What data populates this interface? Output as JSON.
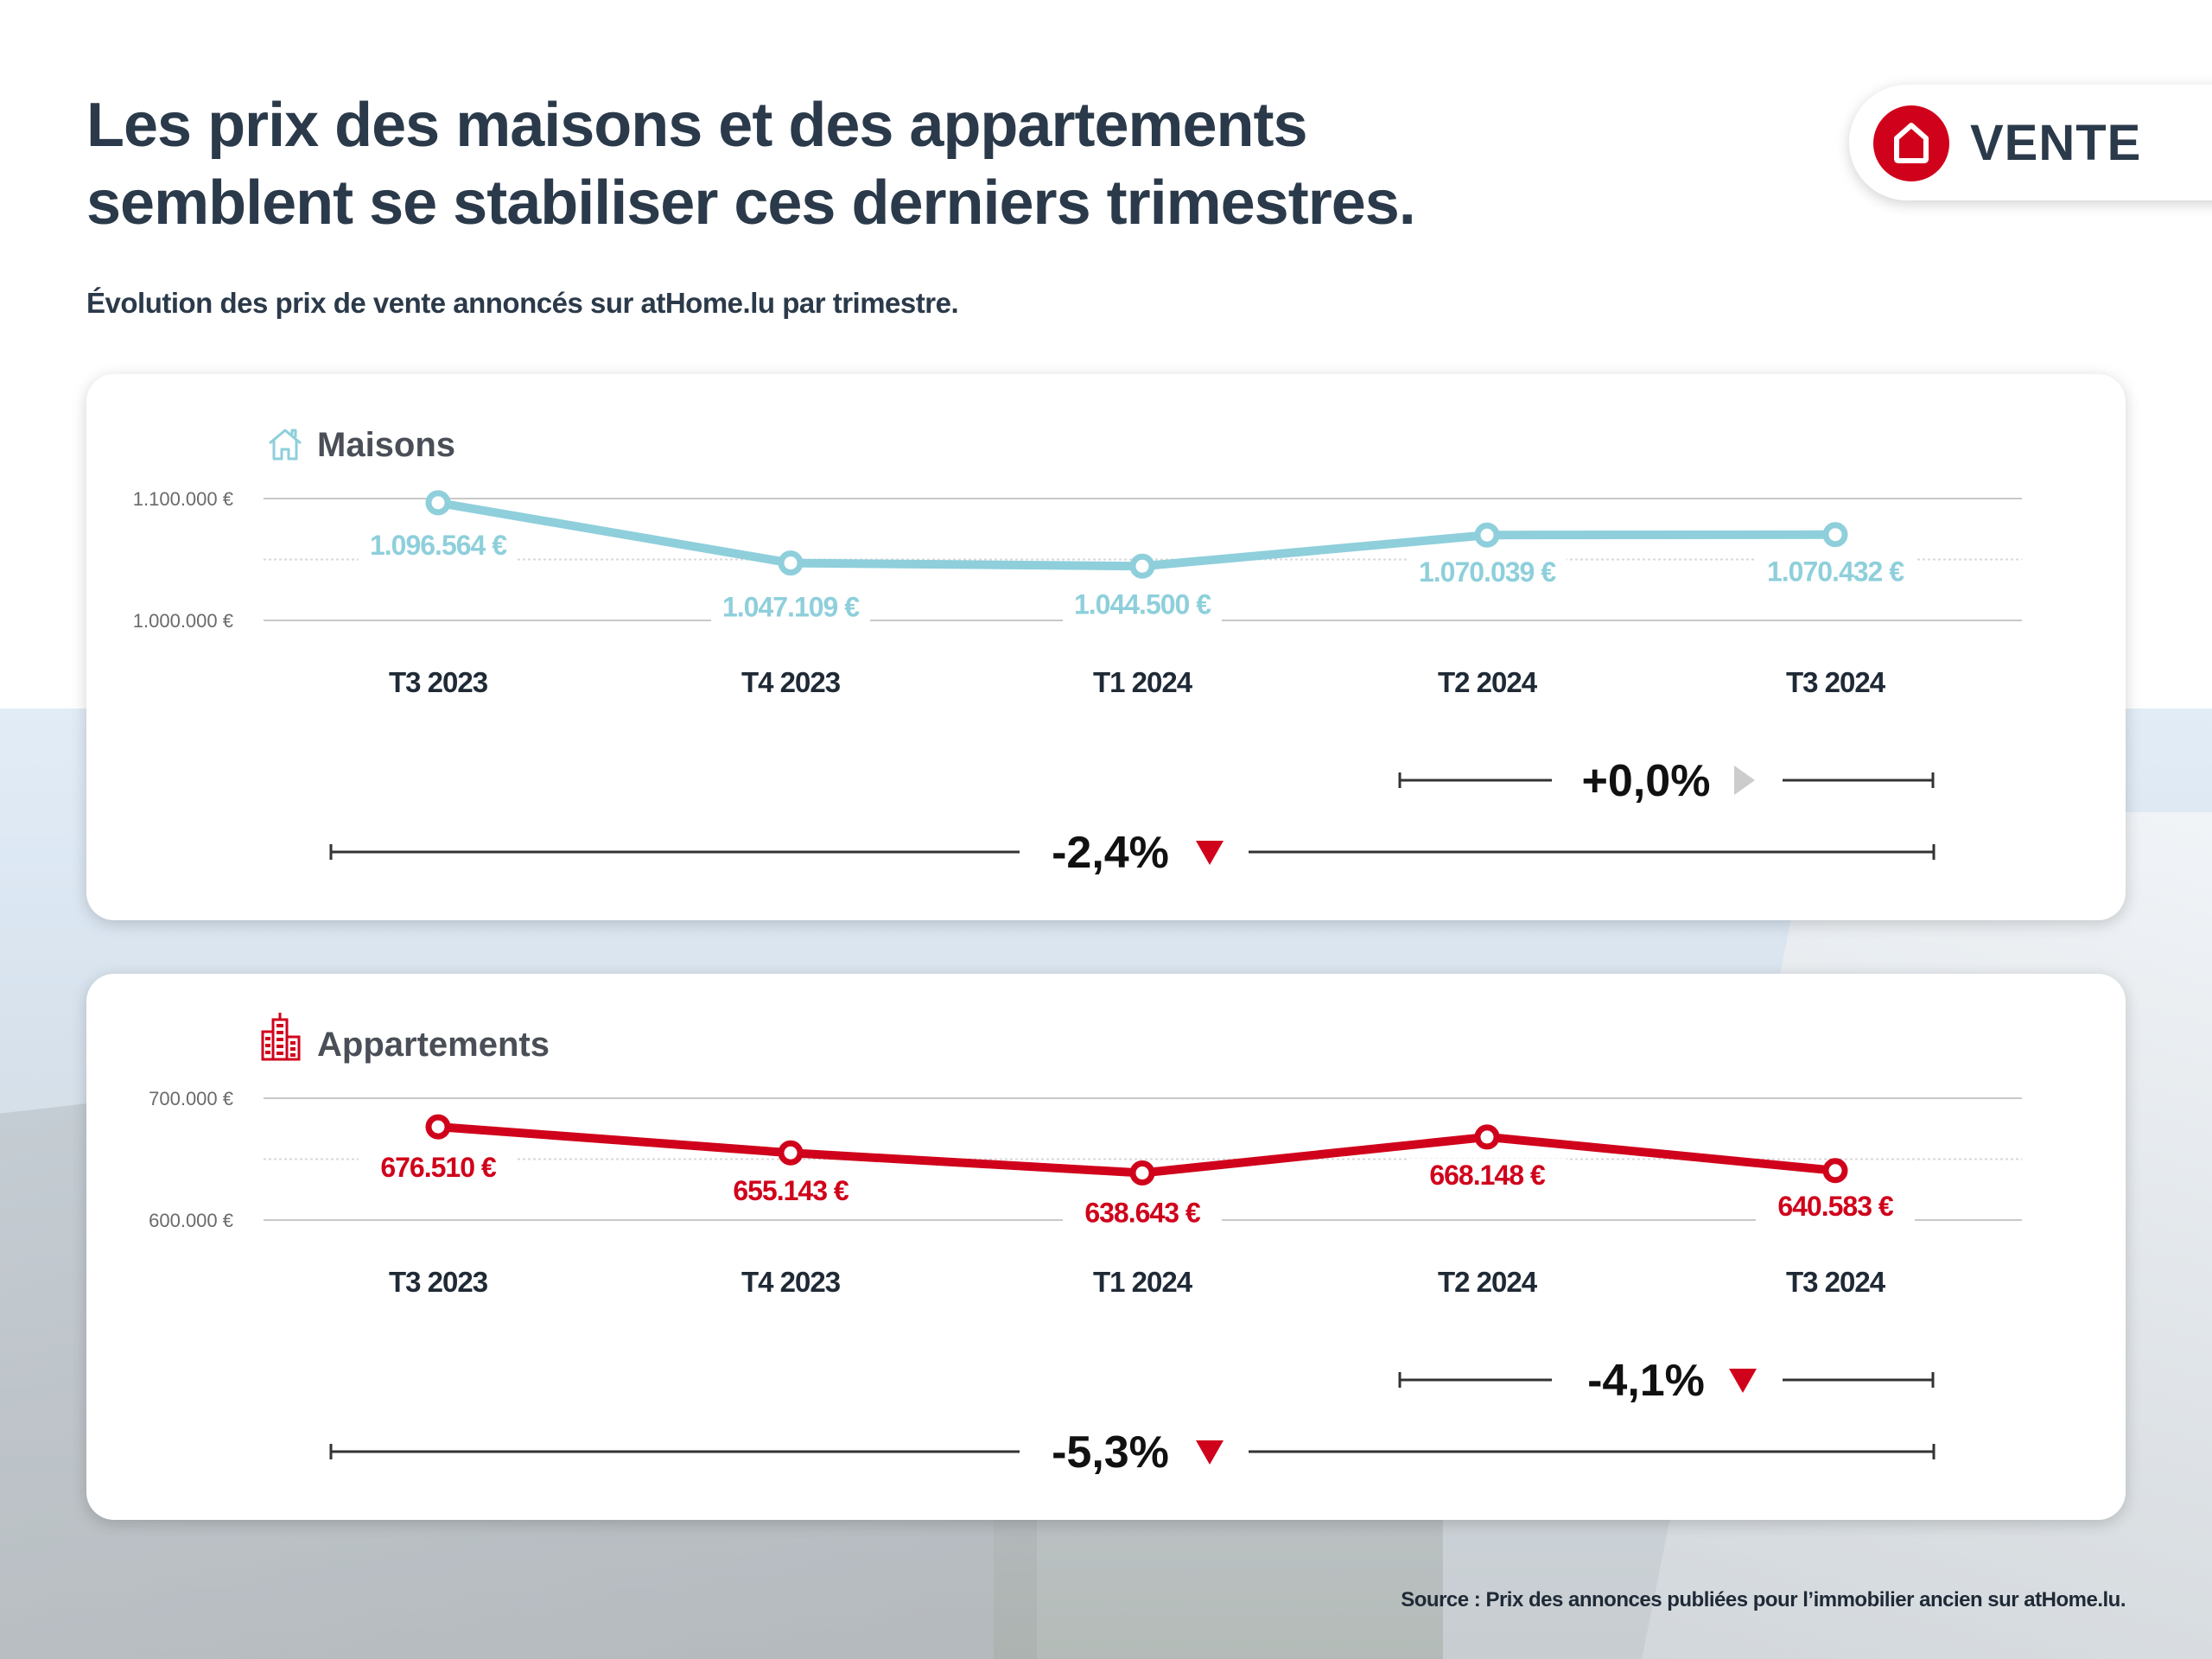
{
  "header": {
    "title_line1": "Les prix des maisons et des appartements",
    "title_line2": "semblent se stabiliser ces derniers trimestres.",
    "subtitle": "Évolution des prix de vente annoncés sur atHome.lu par trimestre.",
    "badge_label": "VENTE",
    "badge_icon": "house-icon"
  },
  "colors": {
    "maisons": "#8ecfdb",
    "appartements": "#d0021b",
    "text_dark": "#2b3a4a",
    "neutral_arrow": "#cccccc",
    "down_arrow": "#d0021b"
  },
  "chart_data": [
    {
      "type": "line",
      "title": "Maisons",
      "icon": "house-outline-icon",
      "categories": [
        "T3 2023",
        "T4 2023",
        "T1 2024",
        "T2 2024",
        "T3 2024"
      ],
      "values": [
        1096564,
        1047109,
        1044500,
        1070039,
        1070432
      ],
      "value_labels": [
        "1.096.564 €",
        "1.047.109 €",
        "1.044.500 €",
        "1.070.039 €",
        "1.070.432 €"
      ],
      "label_position": [
        "below",
        "below",
        "below",
        "below",
        "below"
      ],
      "yticks": [
        1000000,
        1100000
      ],
      "ytick_labels": [
        "1.000.000 €",
        "1.100.000 €"
      ],
      "ylim": [
        1000000,
        1100000
      ],
      "grid": true,
      "xlabel": "",
      "ylabel": "",
      "changes": [
        {
          "label": "+0,0%",
          "from": "T2 2024",
          "to": "T3 2024",
          "direction": "neutral"
        },
        {
          "label": "-2,4%",
          "from": "T3 2023",
          "to": "T3 2024",
          "direction": "down"
        }
      ]
    },
    {
      "type": "line",
      "title": "Appartements",
      "icon": "apartment-building-icon",
      "categories": [
        "T3 2023",
        "T4 2023",
        "T1 2024",
        "T2 2024",
        "T3 2024"
      ],
      "values": [
        676510,
        655143,
        638643,
        668148,
        640583
      ],
      "value_labels": [
        "676.510 €",
        "655.143 €",
        "638.643 €",
        "668.148 €",
        "640.583 €"
      ],
      "yticks": [
        600000,
        700000
      ],
      "ytick_labels": [
        "600.000 €",
        "700.000 €"
      ],
      "ylim": [
        600000,
        700000
      ],
      "grid": true,
      "xlabel": "",
      "ylabel": "",
      "changes": [
        {
          "label": "-4,1%",
          "from": "T2 2024",
          "to": "T3 2024",
          "direction": "down"
        },
        {
          "label": "-5,3%",
          "from": "T3 2023",
          "to": "T3 2024",
          "direction": "down"
        }
      ]
    }
  ],
  "footer": {
    "source": "Source : Prix des annonces publiées pour l’immobilier ancien sur atHome.lu."
  }
}
